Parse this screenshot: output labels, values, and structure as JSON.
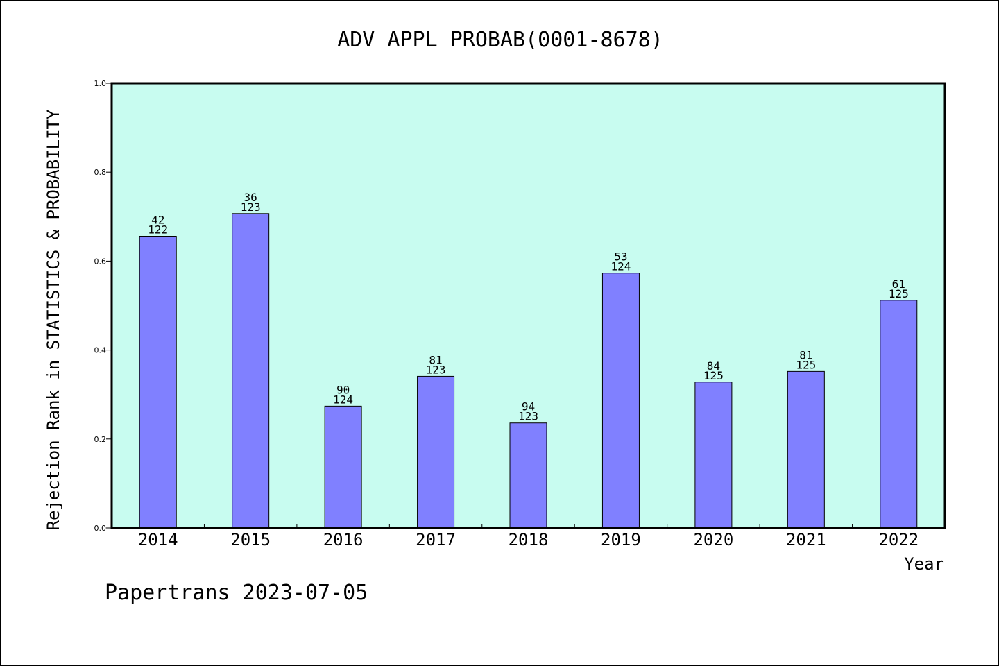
{
  "chart_data": {
    "type": "bar",
    "title": "ADV APPL PROBAB(0001-8678)",
    "xlabel": "Year",
    "ylabel": "Rejection Rank in STATISTICS & PROBABILITY",
    "ylim": [
      0,
      1.0
    ],
    "yticks": [
      "0.0",
      "0.2",
      "0.4",
      "0.6",
      "0.8",
      "1.0"
    ],
    "grid": false,
    "categories": [
      "2014",
      "2015",
      "2016",
      "2017",
      "2018",
      "2019",
      "2020",
      "2021",
      "2022"
    ],
    "values": [
      0.656,
      0.707,
      0.274,
      0.341,
      0.236,
      0.573,
      0.328,
      0.352,
      0.512
    ],
    "rank": [
      "42",
      "36",
      "90",
      "81",
      "94",
      "53",
      "84",
      "81",
      "61"
    ],
    "total": [
      "122",
      "123",
      "124",
      "123",
      "123",
      "124",
      "125",
      "125",
      "125"
    ]
  },
  "colors": {
    "plot_background": "#c8fcf0",
    "bar_fill": "#8080ff",
    "bar_stroke": "#000000"
  },
  "footer": "Papertrans 2023-07-05"
}
